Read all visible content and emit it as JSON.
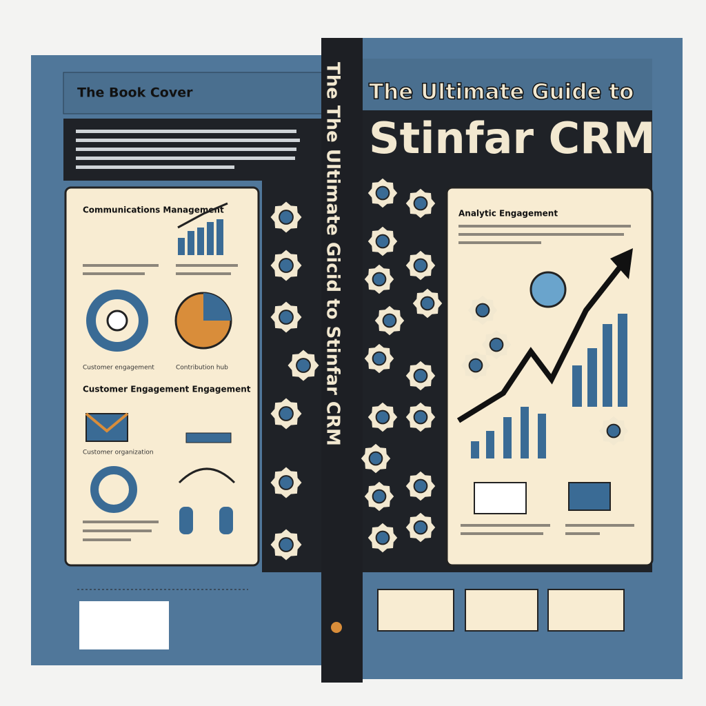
{
  "back_cover": {
    "title": "The Book Cover",
    "panels": [
      {
        "heading": "Communications Management",
        "captions": [
          "Customer engagement",
          "Contribution hub"
        ]
      },
      {
        "heading": "Customer Engagement Engagement",
        "captions": [
          "Customer organization"
        ]
      }
    ]
  },
  "spine": {
    "text": "The The Ultimate Gicid to Stinfar CRM"
  },
  "front_cover": {
    "title_line1": "The Ultimate Guide to",
    "title_line2": "Stinfar CRM",
    "panel": {
      "heading": "Analytic Engagement"
    }
  }
}
